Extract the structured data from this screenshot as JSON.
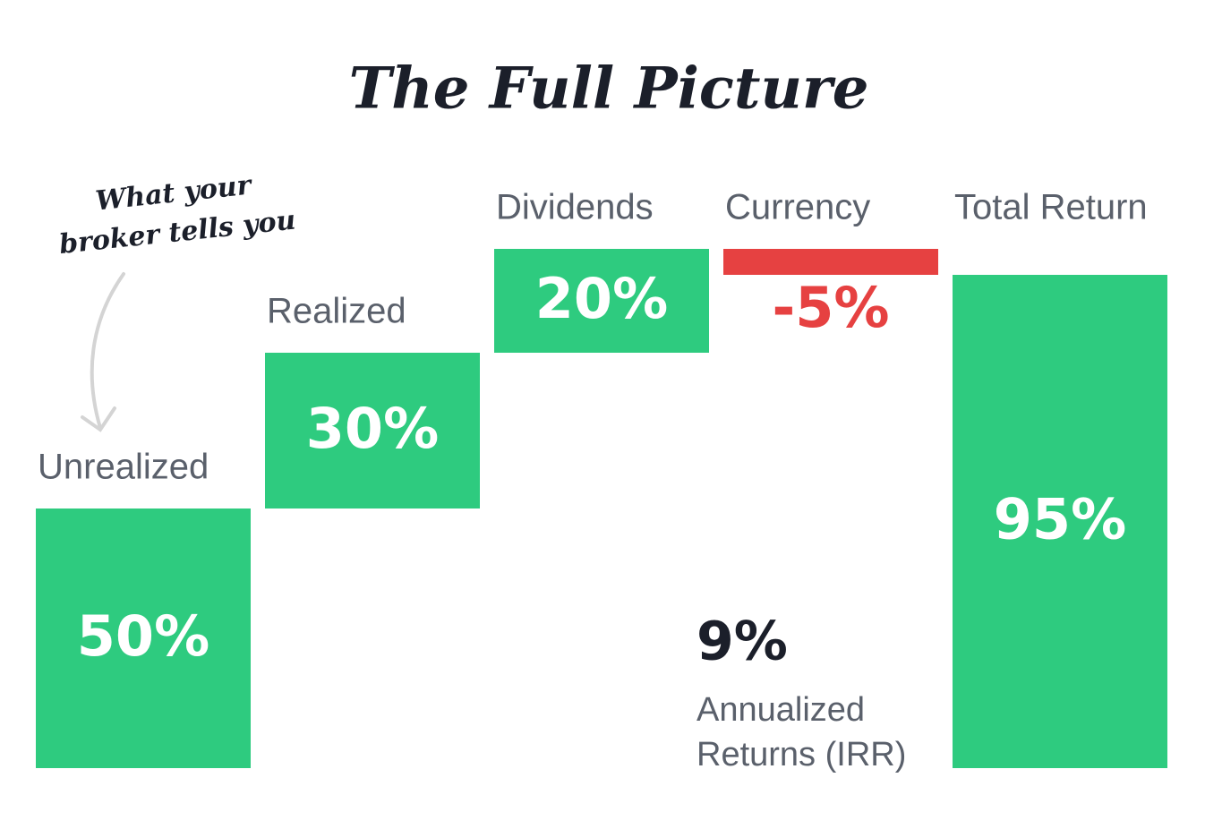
{
  "chart_data": {
    "type": "waterfall",
    "title": "The Full Picture",
    "categories": [
      "Unrealized",
      "Realized",
      "Dividends",
      "Currency",
      "Total Return"
    ],
    "values": [
      50,
      30,
      20,
      -5,
      95
    ],
    "value_labels": [
      "50%",
      "30%",
      "20%",
      "-5%",
      "95%"
    ],
    "color": "#2ecb7f",
    "negative_color": "#e64141",
    "annotations": {
      "broker_note": [
        "What your",
        "broker tells you"
      ],
      "irr_value": "9%",
      "irr_label": [
        "Annualized",
        "Returns (IRR)"
      ]
    }
  }
}
